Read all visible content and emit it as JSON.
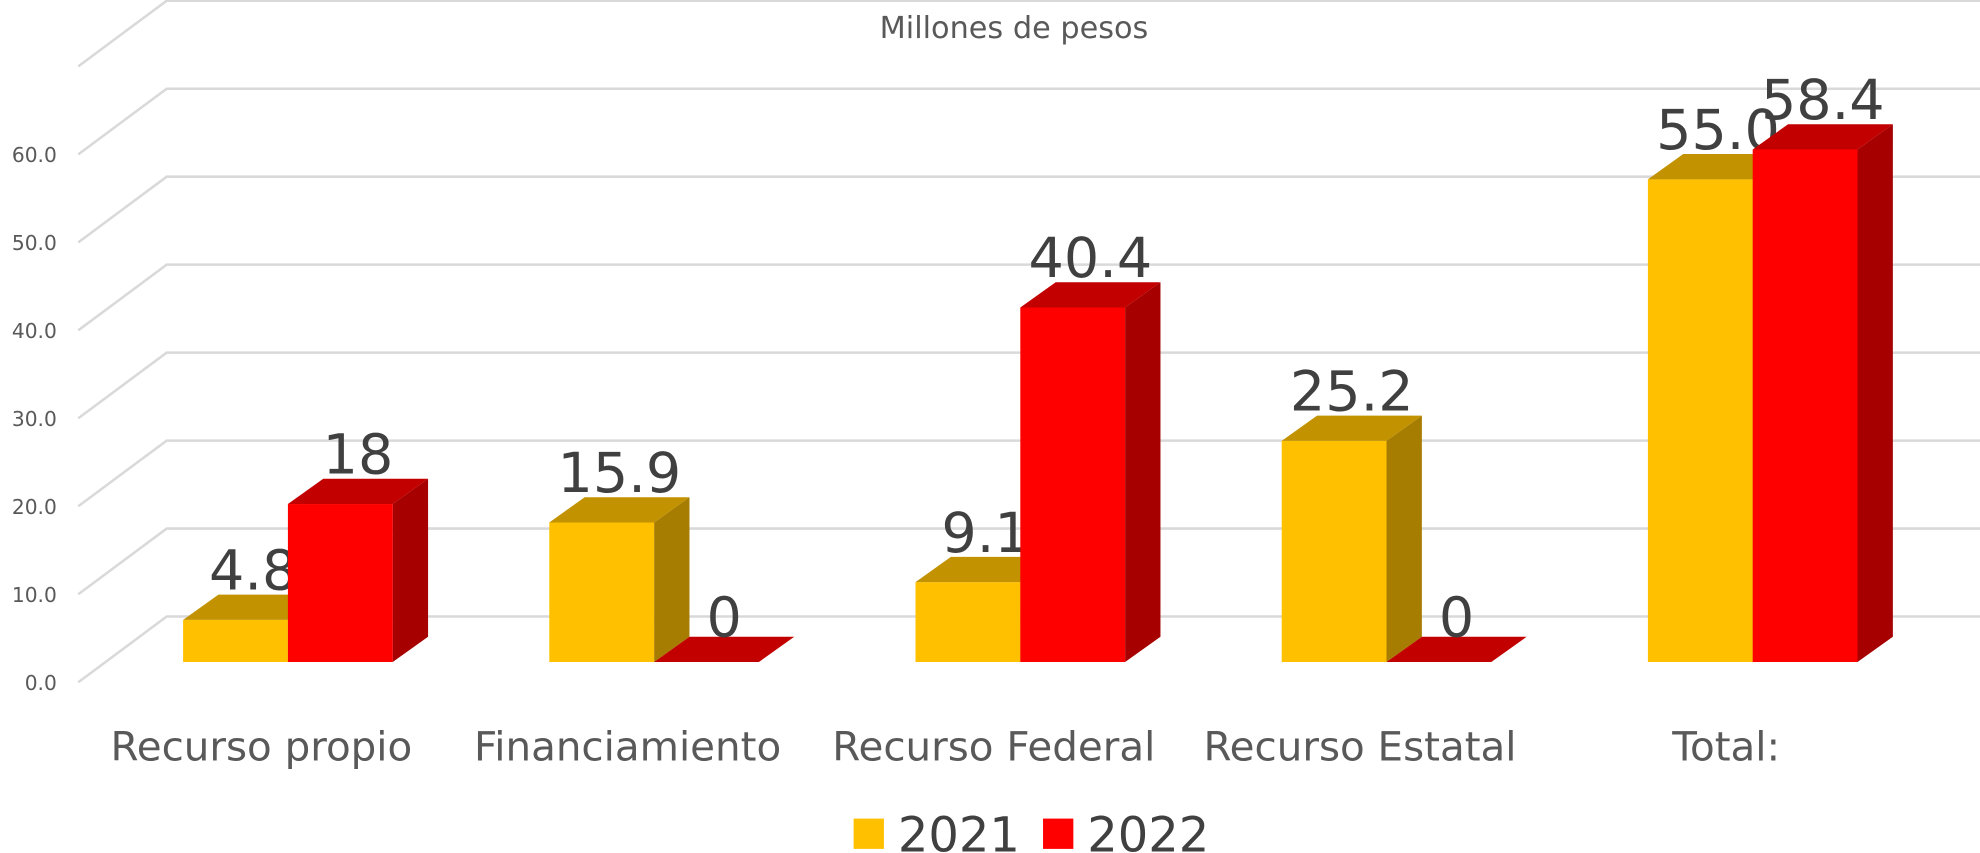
{
  "chart_data": {
    "type": "bar3d",
    "title": "Millones de pesos",
    "categories": [
      "Recurso propio",
      "Financiamiento",
      "Recurso Federal",
      "Recurso Estatal",
      "Total:"
    ],
    "series": [
      {
        "name": "2021",
        "color": "#ffc000",
        "values": [
          4.8,
          15.9,
          9.1,
          25.2,
          55.0
        ],
        "value_labels": [
          "4.8",
          "15.9",
          "9.1",
          "25.2",
          "55.0"
        ]
      },
      {
        "name": "2022",
        "color": "#ff0000",
        "values": [
          18,
          0,
          40.4,
          0,
          58.4
        ],
        "value_labels": [
          "18",
          "0",
          "40.4",
          "0",
          "58.4"
        ]
      }
    ],
    "ylim": [
      0,
      70
    ],
    "yticks": [
      {
        "value": 0,
        "label": "0.0"
      },
      {
        "value": 10,
        "label": "10.0"
      },
      {
        "value": 20,
        "label": "20.0"
      },
      {
        "value": 30,
        "label": "30.0"
      },
      {
        "value": 40,
        "label": "40.0"
      },
      {
        "value": 50,
        "label": "50.0"
      },
      {
        "value": 60,
        "label": "60.0"
      }
    ],
    "grid": true,
    "legend": "bottom"
  }
}
